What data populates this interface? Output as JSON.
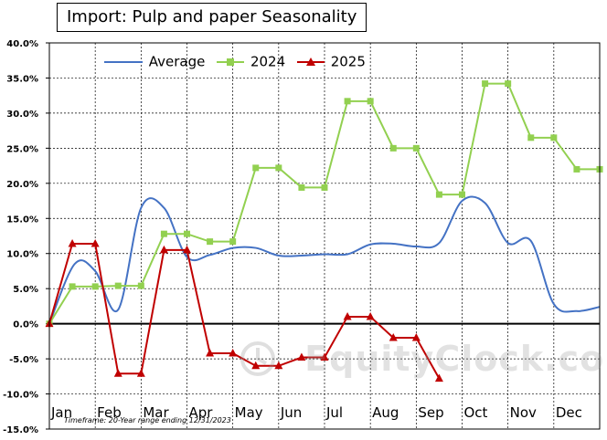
{
  "title": "Import: Pulp and paper Seasonality",
  "footnote": "Timeframe: 20-Year range ending 12/31/2023",
  "watermark": "EquityClock.com",
  "colors": {
    "average": "#4472C4",
    "y2024": "#92D050",
    "y2025": "#C00000",
    "grid": "#000000",
    "zero_line": "#000000"
  },
  "chart_data": {
    "type": "line",
    "title": "Import: Pulp and paper Seasonality",
    "ylim": [
      -15,
      40
    ],
    "y_ticks": [
      "40.0%",
      "35.0%",
      "30.0%",
      "25.0%",
      "20.0%",
      "15.0%",
      "10.0%",
      "5.0%",
      "0.0%",
      "-5.0%",
      "-10.0%",
      "-15.0%"
    ],
    "y_tick_values": [
      40,
      35,
      30,
      25,
      20,
      15,
      10,
      5,
      0,
      -5,
      -10,
      -15
    ],
    "x_range": [
      0,
      12
    ],
    "month_labels": [
      "Jan",
      "Feb",
      "Mar",
      "Apr",
      "May",
      "Jun",
      "Jul",
      "Aug",
      "Sep",
      "Oct",
      "Nov",
      "Dec"
    ],
    "grid": true,
    "legend_position": "top-left",
    "series": [
      {
        "name": "Average",
        "style": "smooth",
        "x": [
          0,
          0.55,
          1.0,
          1.5,
          2.0,
          2.5,
          3.0,
          3.5,
          4.0,
          4.5,
          5.0,
          5.5,
          6.0,
          6.5,
          7.0,
          7.5,
          8.0,
          8.5,
          9.0,
          9.5,
          10.0,
          10.5,
          11.0,
          11.5,
          12.0
        ],
        "values": [
          0,
          8.5,
          7.5,
          2.0,
          16.5,
          16.5,
          9.5,
          9.8,
          10.8,
          10.8,
          9.7,
          9.7,
          9.9,
          9.9,
          11.3,
          11.4,
          11.0,
          11.5,
          17.5,
          17.2,
          11.5,
          11.8,
          2.8,
          1.8,
          2.4
        ]
      },
      {
        "name": "2024",
        "x": [
          0,
          0.5,
          1.0,
          1.5,
          2.0,
          2.5,
          3.0,
          3.5,
          4.0,
          4.5,
          5.0,
          5.5,
          6.0,
          6.5,
          7.0,
          7.5,
          8.0,
          8.5,
          9.0,
          9.5,
          10.0,
          10.5,
          11.0,
          11.5,
          12.0
        ],
        "values": [
          0,
          5.3,
          5.3,
          5.4,
          5.4,
          12.8,
          12.8,
          11.7,
          11.7,
          22.2,
          22.2,
          19.4,
          19.4,
          31.7,
          31.7,
          25.0,
          25.0,
          18.4,
          18.4,
          34.2,
          34.2,
          26.5,
          26.5,
          22.0,
          22.0
        ]
      },
      {
        "name": "2025",
        "x": [
          0,
          0.5,
          1.0,
          1.5,
          2.0,
          2.5,
          3.0,
          3.5,
          4.0,
          4.5,
          5.0,
          5.5,
          6.0,
          6.5,
          7.0,
          7.5,
          8.0,
          8.5
        ],
        "values": [
          0,
          11.4,
          11.4,
          -7.1,
          -7.1,
          10.5,
          10.5,
          -4.2,
          -4.2,
          -6.0,
          -6.0,
          -4.8,
          -4.8,
          1.0,
          1.0,
          -2.0,
          -2.0,
          -7.8
        ]
      }
    ]
  }
}
